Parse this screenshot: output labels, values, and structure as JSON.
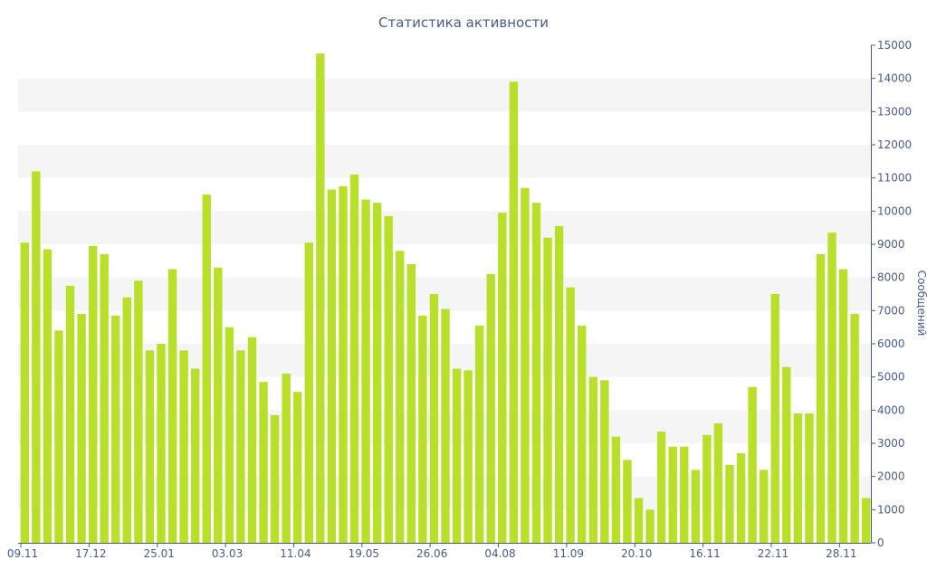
{
  "chart_data": {
    "type": "bar",
    "title": "Статистика активности",
    "xlabel": "",
    "ylabel": "Сообщений",
    "ylim": [
      0,
      15000
    ],
    "yticks": [
      0,
      1000,
      2000,
      3000,
      4000,
      5000,
      6000,
      7000,
      8000,
      9000,
      10000,
      11000,
      12000,
      13000,
      14000,
      15000
    ],
    "x_tick_labels": [
      {
        "label": "09.11",
        "index": 0
      },
      {
        "label": "17.12",
        "index": 6
      },
      {
        "label": "25.01",
        "index": 12
      },
      {
        "label": "03.03",
        "index": 18
      },
      {
        "label": "11.04",
        "index": 24
      },
      {
        "label": "19.05",
        "index": 30
      },
      {
        "label": "26.06",
        "index": 36
      },
      {
        "label": "04.08",
        "index": 42
      },
      {
        "label": "11.09",
        "index": 48
      },
      {
        "label": "20.10",
        "index": 54
      },
      {
        "label": "16.11",
        "index": 60
      },
      {
        "label": "22.11",
        "index": 66
      },
      {
        "label": "28.11",
        "index": 72
      }
    ],
    "values": [
      9050,
      11200,
      8850,
      6400,
      7750,
      6900,
      8950,
      8700,
      6850,
      7400,
      7900,
      5800,
      6000,
      8250,
      5800,
      5250,
      10500,
      8300,
      6500,
      5800,
      6200,
      4850,
      3850,
      5100,
      4550,
      9050,
      14750,
      10650,
      10750,
      11100,
      10350,
      10250,
      9850,
      8800,
      8400,
      6850,
      7500,
      7050,
      5250,
      5200,
      6550,
      8100,
      9950,
      13900,
      10700,
      10250,
      9200,
      9550,
      7700,
      6550,
      5000,
      4900,
      3200,
      2500,
      1350,
      1000,
      3350,
      2900,
      2900,
      2200,
      3250,
      3600,
      2350,
      2700,
      4700,
      2200,
      7500,
      5300,
      3900,
      3900,
      8700,
      9350,
      8250,
      6900,
      1350
    ],
    "bar_color": "#b8e02a",
    "grid_band_color": "#f5f5f5",
    "axis_color": "#4a5a8e",
    "grid": true,
    "legend": "none"
  }
}
